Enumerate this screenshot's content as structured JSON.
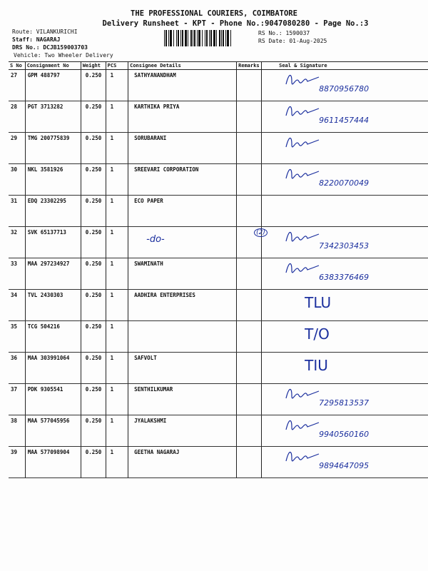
{
  "header": {
    "company": "THE PROFESSIONAL COURIERS, COIMBATORE",
    "subtitle": "Delivery Runsheet - KPT - Phone No.:9047080280 - Page No.:3"
  },
  "meta": {
    "route": "Route: VILANKURICHI",
    "staff": "Staff: NAGARAJ",
    "drs": "DRS No.: DCJB159003703",
    "vehicle": "Vehicle: Two Wheeler Delivery",
    "rs_no": "RS No.: 1590037",
    "rs_date": "RS Date: 01-Aug-2025"
  },
  "columns": [
    "S No",
    "Consignment No",
    "Weight",
    "PCS",
    "Consignee Details",
    "Remarks",
    "Seal & Signature"
  ],
  "rows": [
    {
      "sno": "27",
      "cn": "GPM 488797",
      "wt": "0.250",
      "pcs": "1",
      "consignee": "SATHYANANDHAM",
      "remark": "",
      "hw": "8870956780",
      "sig": true
    },
    {
      "sno": "28",
      "cn": "PGT 3713282",
      "wt": "0.250",
      "pcs": "1",
      "consignee": "KARTHIKA PRIYA",
      "remark": "",
      "hw": "9611457444",
      "sig": true
    },
    {
      "sno": "29",
      "cn": "TMG 200775839",
      "wt": "0.250",
      "pcs": "1",
      "consignee": "SORUBARANI",
      "remark": "",
      "hw": "",
      "sig": true
    },
    {
      "sno": "30",
      "cn": "NKL 3581926",
      "wt": "0.250",
      "pcs": "1",
      "consignee": "SREEVARI CORPORATION",
      "remark": "",
      "hw": "8220070049",
      "sig": true
    },
    {
      "sno": "31",
      "cn": "EDQ 23302295",
      "wt": "0.250",
      "pcs": "1",
      "consignee": "ECO PAPER",
      "remark": "",
      "hw": "",
      "sig": false
    },
    {
      "sno": "32",
      "cn": "SVK 65137713",
      "wt": "0.250",
      "pcs": "1",
      "consignee": "-do-",
      "remark": "(2)",
      "hw": "7342303453",
      "sig": true
    },
    {
      "sno": "33",
      "cn": "MAA 297234927",
      "wt": "0.250",
      "pcs": "1",
      "consignee": "SWAMINATH",
      "remark": "",
      "hw": "6383376469",
      "sig": true
    },
    {
      "sno": "34",
      "cn": "TVL 2430303",
      "wt": "0.250",
      "pcs": "1",
      "consignee": "AADHIRA ENTERPRISES",
      "remark": "",
      "hw": "TLU",
      "sig": false
    },
    {
      "sno": "35",
      "cn": "TCG 504216",
      "wt": "0.250",
      "pcs": "1",
      "consignee": "",
      "remark": "",
      "hw": "T/O",
      "sig": false
    },
    {
      "sno": "36",
      "cn": "MAA 303991064",
      "wt": "0.250",
      "pcs": "1",
      "consignee": "SAFVOLT",
      "remark": "",
      "hw": "TIU",
      "sig": false
    },
    {
      "sno": "37",
      "cn": "PDK 9305541",
      "wt": "0.250",
      "pcs": "1",
      "consignee": "SENTHILKUMAR",
      "remark": "",
      "hw": "7295813537",
      "sig": true
    },
    {
      "sno": "38",
      "cn": "MAA 577045956",
      "wt": "0.250",
      "pcs": "1",
      "consignee": "JYALAKSHMI",
      "remark": "",
      "hw": "9940560160",
      "sig": true
    },
    {
      "sno": "39",
      "cn": "MAA 577098904",
      "wt": "0.250",
      "pcs": "1",
      "consignee": "GEETHA NAGARAJ",
      "remark": "",
      "hw": "9894647095",
      "sig": true
    }
  ],
  "ink_color": "#1b2f9e"
}
